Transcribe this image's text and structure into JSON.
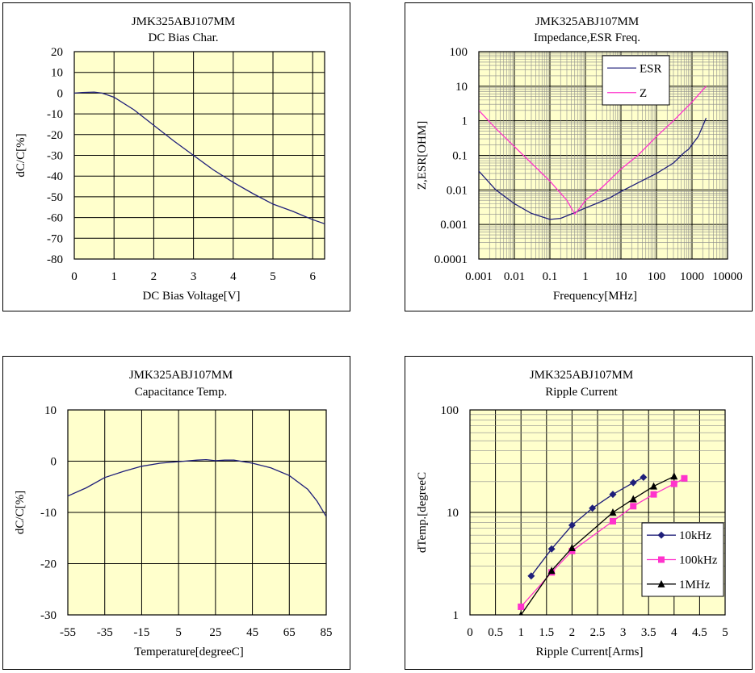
{
  "chart_data": [
    {
      "type": "line",
      "title": "JMK325ABJ107MM",
      "subtitle": "DC Bias Char.",
      "xlabel": "DC Bias Voltage[V]",
      "ylabel": "dC/C[%]",
      "xlim": [
        0,
        6.3
      ],
      "ylim": [
        -80,
        20
      ],
      "xticks": [
        0,
        1,
        2,
        3,
        4,
        5,
        6
      ],
      "yticks": [
        20,
        10,
        0,
        -10,
        -20,
        -30,
        -40,
        -50,
        -60,
        -70,
        -80
      ],
      "grid": true,
      "series": [
        {
          "color": "#1f1f7a",
          "x": [
            0,
            0.2,
            0.5,
            0.7,
            1,
            1.5,
            2,
            2.5,
            3,
            3.5,
            4,
            4.5,
            5,
            5.5,
            6,
            6.3
          ],
          "y": [
            0,
            0.3,
            0.5,
            0,
            -2,
            -8,
            -15.5,
            -23,
            -30,
            -37,
            -43,
            -48.5,
            -53.5,
            -57,
            -61,
            -63
          ]
        }
      ]
    },
    {
      "type": "line",
      "title": "JMK325ABJ107MM",
      "subtitle": "Impedance,ESR  Freq.",
      "xlabel": "Frequency[MHz]",
      "ylabel": "Z,ESR[OHM]",
      "xscale": "log",
      "yscale": "log",
      "xlim": [
        0.001,
        10000
      ],
      "ylim": [
        0.0001,
        100
      ],
      "xticks": [
        "0.001",
        "0.01",
        "0.1",
        "1",
        "10",
        "100",
        "1000",
        "10000"
      ],
      "yticks": [
        "100",
        "10",
        "1",
        "0.1",
        "0.01",
        "0.001",
        "0.0001"
      ],
      "grid": true,
      "legend_position": "top-right",
      "series": [
        {
          "name": "ESR",
          "color": "#1f1f7a",
          "x": [
            0.001,
            0.003,
            0.01,
            0.03,
            0.1,
            0.2,
            0.5,
            1,
            2,
            5,
            10,
            30,
            100,
            300,
            600,
            800,
            1500,
            2500
          ],
          "y": [
            0.035,
            0.01,
            0.004,
            0.0021,
            0.0014,
            0.0015,
            0.0022,
            0.003,
            0.004,
            0.006,
            0.009,
            0.016,
            0.03,
            0.06,
            0.12,
            0.15,
            0.35,
            1.2
          ]
        },
        {
          "name": "Z",
          "color": "#ff33cc",
          "x": [
            0.001,
            0.003,
            0.01,
            0.03,
            0.1,
            0.3,
            0.5,
            0.7,
            1,
            3,
            10,
            30,
            100,
            300,
            1000,
            2500
          ],
          "y": [
            2,
            0.6,
            0.18,
            0.06,
            0.018,
            0.005,
            0.002,
            0.003,
            0.005,
            0.012,
            0.04,
            0.1,
            0.35,
            1,
            3.5,
            10
          ]
        }
      ]
    },
    {
      "type": "line",
      "title": "JMK325ABJ107MM",
      "subtitle": "Capacitance Temp.",
      "xlabel": "Temperature[degreeC]",
      "ylabel": "dC/C[%]",
      "xlim": [
        -55,
        85
      ],
      "ylim": [
        -30,
        10
      ],
      "xticks": [
        -55,
        -35,
        -15,
        5,
        25,
        45,
        65,
        85
      ],
      "yticks": [
        10,
        0,
        -10,
        -20,
        -30
      ],
      "grid": true,
      "series": [
        {
          "color": "#1f1f7a",
          "x": [
            -55,
            -45,
            -35,
            -25,
            -15,
            -5,
            5,
            15,
            20,
            25,
            30,
            35,
            45,
            55,
            65,
            75,
            80,
            85
          ],
          "y": [
            -6.8,
            -5.2,
            -3.2,
            -2,
            -1,
            -0.4,
            -0.1,
            0.2,
            0.3,
            0.1,
            0.2,
            0.2,
            -0.4,
            -1.3,
            -2.8,
            -5.5,
            -7.8,
            -10.8
          ]
        }
      ]
    },
    {
      "type": "scatter",
      "title": "JMK325ABJ107MM",
      "subtitle": "Ripple Current",
      "xlabel": "Ripple Current[Arms]",
      "ylabel": "dTemp.[degreeC",
      "xlim": [
        0,
        5
      ],
      "ylim": [
        1,
        100
      ],
      "yscale": "log",
      "xticks": [
        "0",
        "0.5",
        "1",
        "1.5",
        "2",
        "2.5",
        "3",
        "3.5",
        "4",
        "4.5",
        "5"
      ],
      "yticks": [
        "100",
        "10",
        "1"
      ],
      "grid": true,
      "legend_position": "bottom-right",
      "series": [
        {
          "name": "10kHz",
          "color": "#1f1f7a",
          "marker": "diamond",
          "x": [
            1.2,
            1.6,
            2,
            2.4,
            2.8,
            3.2,
            3.4
          ],
          "y": [
            2.4,
            4.4,
            7.5,
            11,
            15,
            19.5,
            22
          ]
        },
        {
          "name": "100kHz",
          "color": "#ff33cc",
          "marker": "square",
          "x": [
            1,
            1.6,
            2,
            2.8,
            3.2,
            3.6,
            4,
            4.2
          ],
          "y": [
            1.2,
            2.6,
            4.2,
            8.2,
            11.5,
            15,
            19,
            21.5
          ]
        },
        {
          "name": "1MHz",
          "color": "#000000",
          "marker": "triangle",
          "x": [
            1,
            1.6,
            2,
            2.8,
            3.2,
            3.6,
            4
          ],
          "y": [
            1,
            2.7,
            4.5,
            10,
            13.5,
            18,
            22.5
          ]
        }
      ]
    }
  ]
}
